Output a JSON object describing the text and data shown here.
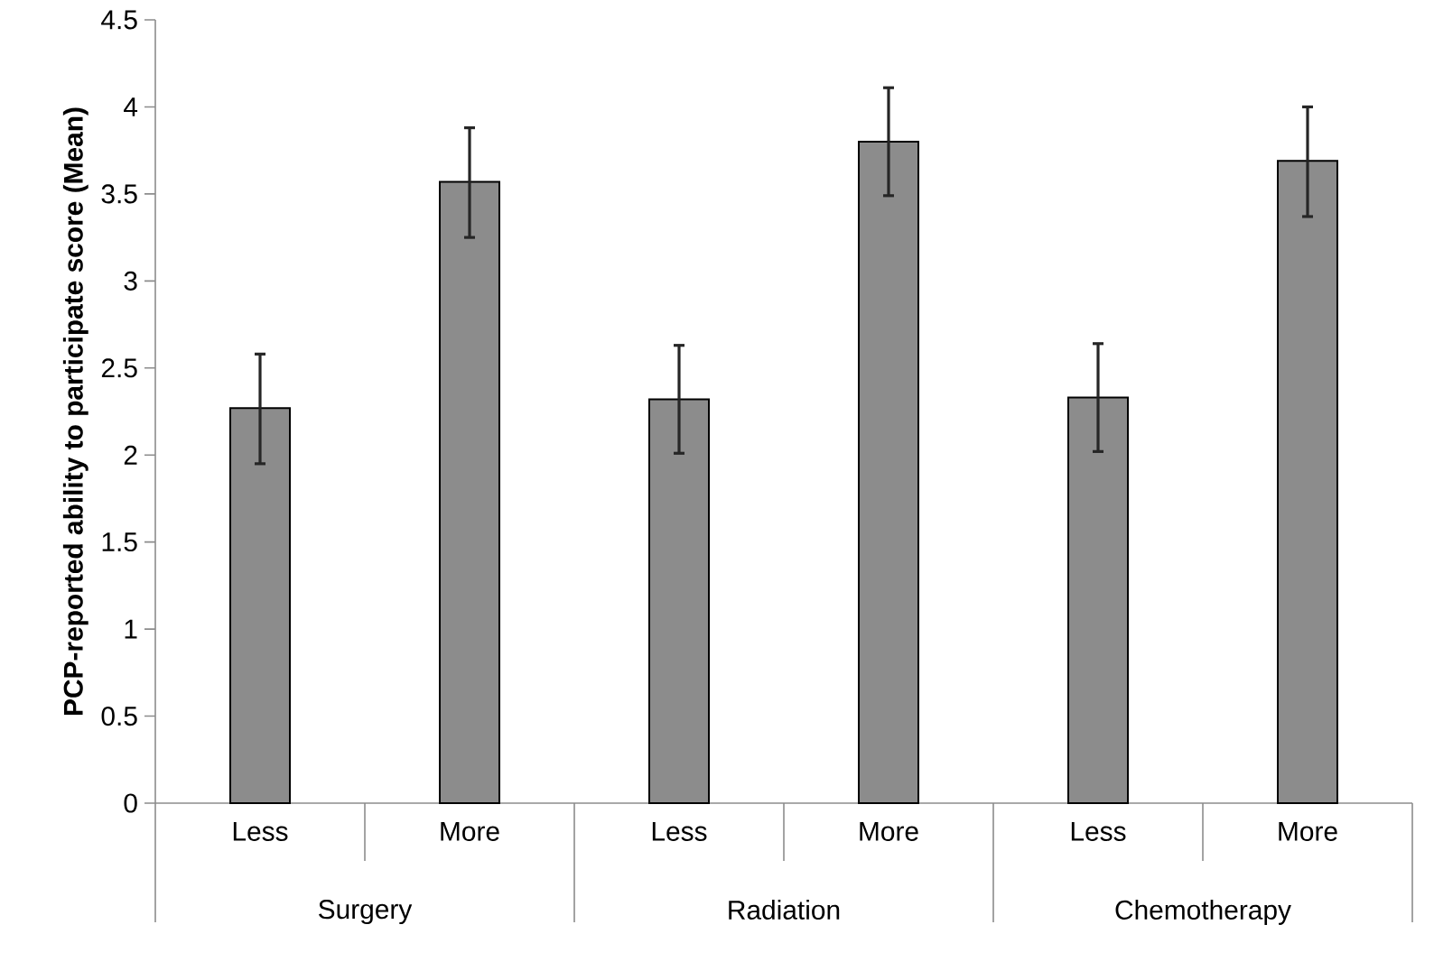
{
  "chart_data": {
    "type": "bar",
    "ylabel": "PCP-reported ability to participate score (Mean)",
    "categories": [
      "Less",
      "More",
      "Less",
      "More",
      "Less",
      "More"
    ],
    "values": [
      2.27,
      3.57,
      2.32,
      3.8,
      2.33,
      3.69
    ],
    "errors": [
      [
        1.95,
        2.58
      ],
      [
        3.25,
        3.88
      ],
      [
        2.01,
        2.63
      ],
      [
        3.49,
        4.11
      ],
      [
        2.02,
        2.64
      ],
      [
        3.37,
        4.0
      ]
    ],
    "color": "#8c8c8c",
    "ylim": [
      0,
      4.5
    ],
    "yticks": [
      0,
      0.5,
      1,
      1.5,
      2,
      2.5,
      3,
      3.5,
      4,
      4.5
    ],
    "annotations": [
      "Surgery",
      "Radiation",
      "Chemotherapy"
    ]
  }
}
